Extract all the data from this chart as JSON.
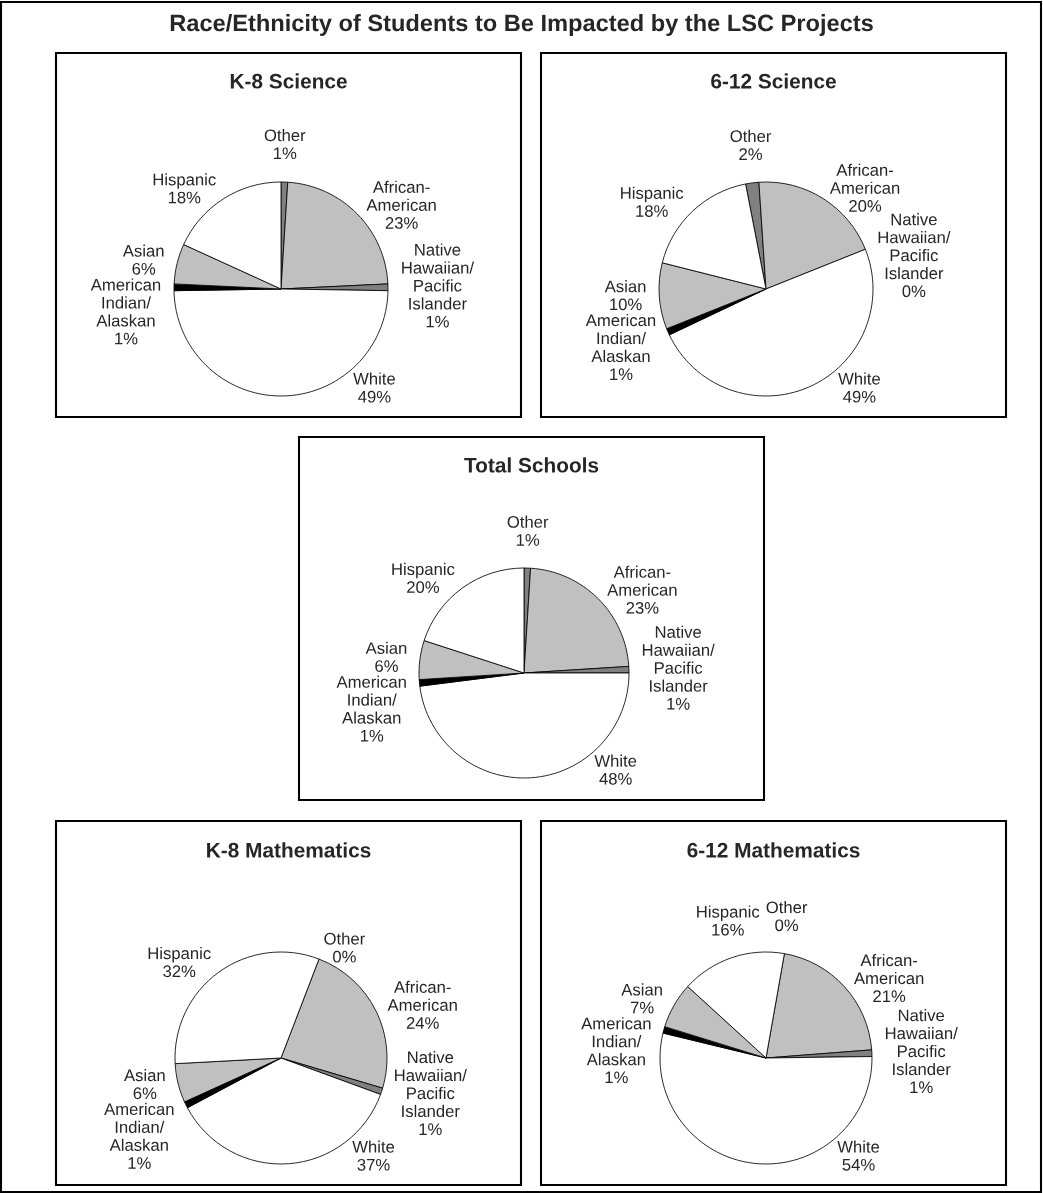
{
  "chart_data": [
    {
      "type": "other",
      "title": "Race/Ethnicity of Students to Be Impacted by the LSC Projects"
    },
    {
      "type": "pie",
      "title": "K-8 Science",
      "categories": [
        "Other",
        "African-\nAmerican",
        "Native\nHawaiian/\nPacific\nIslander",
        "White",
        "American\nIndian/\nAlaskan",
        "Asian",
        "Hispanic"
      ],
      "values": [
        1,
        23,
        1,
        49,
        1,
        6,
        18
      ],
      "value_labels": [
        "1%",
        "23%",
        "1%",
        "49%",
        "1%",
        "6%",
        "18%"
      ],
      "colors": [
        "#808080",
        "#c0c0c0",
        "#808080",
        "#ffffff",
        "#000000",
        "#c0c0c0",
        "#ffffff"
      ]
    },
    {
      "type": "pie",
      "title": "6-12 Science",
      "categories": [
        "Other",
        "African-\nAmerican",
        "Native\nHawaiian/\nPacific\nIslander",
        "White",
        "American\nIndian/\nAlaskan",
        "Asian",
        "Hispanic"
      ],
      "values": [
        2,
        20,
        0,
        49,
        1,
        10,
        18
      ],
      "value_labels": [
        "2%",
        "20%",
        "0%",
        "49%",
        "1%",
        "10%",
        "18%"
      ],
      "colors": [
        "#808080",
        "#c0c0c0",
        "#808080",
        "#ffffff",
        "#000000",
        "#c0c0c0",
        "#ffffff"
      ]
    },
    {
      "type": "pie",
      "title": "Total Schools",
      "categories": [
        "Other",
        "African-\nAmerican",
        "Native\nHawaiian/\nPacific\nIslander",
        "White",
        "American\nIndian/\nAlaskan",
        "Asian",
        "Hispanic"
      ],
      "values": [
        1,
        23,
        1,
        48,
        1,
        6,
        20
      ],
      "value_labels": [
        "1%",
        "23%",
        "1%",
        "48%",
        "1%",
        "6%",
        "20%"
      ],
      "colors": [
        "#808080",
        "#c0c0c0",
        "#808080",
        "#ffffff",
        "#000000",
        "#c0c0c0",
        "#ffffff"
      ]
    },
    {
      "type": "pie",
      "title": "K-8 Mathematics",
      "categories": [
        "Other",
        "African-\nAmerican",
        "Native\nHawaiian/\nPacific\nIslander",
        "White",
        "American\nIndian/\nAlaskan",
        "Asian",
        "Hispanic"
      ],
      "values": [
        0,
        24,
        1,
        37,
        1,
        6,
        32
      ],
      "value_labels": [
        "0%",
        "24%",
        "1%",
        "37%",
        "1%",
        "6%",
        "32%"
      ],
      "colors": [
        "#808080",
        "#c0c0c0",
        "#808080",
        "#ffffff",
        "#000000",
        "#c0c0c0",
        "#ffffff"
      ]
    },
    {
      "type": "pie",
      "title": "6-12 Mathematics",
      "categories": [
        "Other",
        "African-\nAmerican",
        "Native\nHawaiian/\nPacific\nIslander",
        "White",
        "American\nIndian/\nAlaskan",
        "Asian",
        "Hispanic"
      ],
      "values": [
        0,
        21,
        1,
        54,
        1,
        7,
        16
      ],
      "value_labels": [
        "0%",
        "21%",
        "1%",
        "54%",
        "1%",
        "7%",
        "16%"
      ],
      "colors": [
        "#808080",
        "#c0c0c0",
        "#808080",
        "#ffffff",
        "#000000",
        "#c0c0c0",
        "#ffffff"
      ]
    }
  ]
}
